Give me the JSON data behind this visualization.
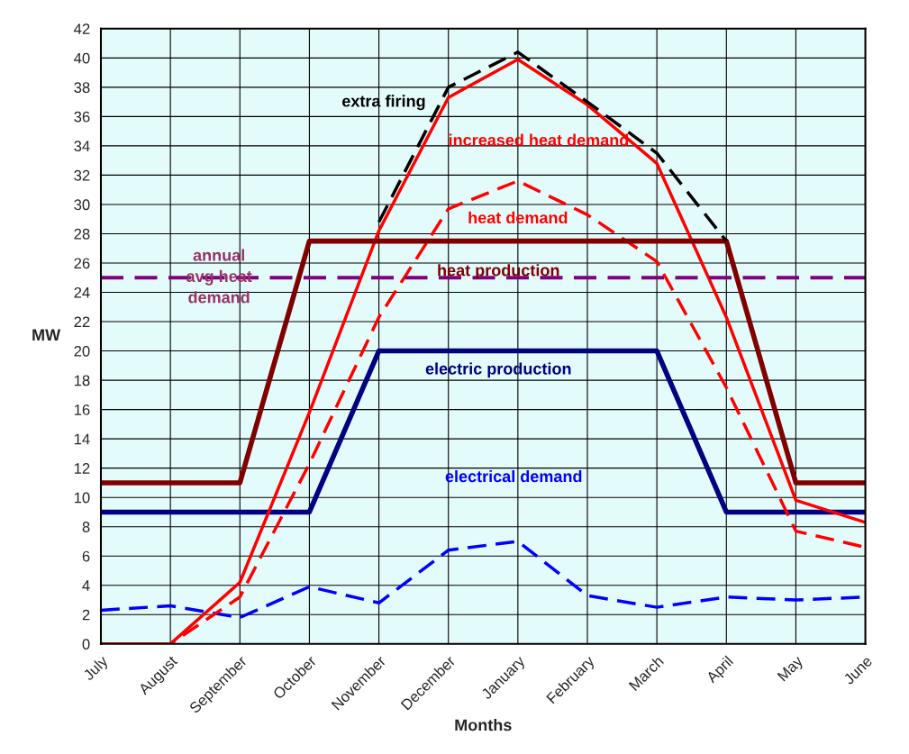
{
  "chart_data": {
    "type": "line",
    "xlabel": "Months",
    "ylabel": "MW",
    "categories": [
      "July",
      "August",
      "September",
      "October",
      "November",
      "December",
      "January",
      "February",
      "March",
      "April",
      "May",
      "June"
    ],
    "series": [
      {
        "name": "electrical demand",
        "color": "#0000ff",
        "line_style": "dashed",
        "values": [
          2.3,
          2.6,
          1.8,
          3.9,
          2.8,
          6.4,
          7.0,
          3.3,
          2.5,
          3.2,
          3.0,
          3.2
        ]
      },
      {
        "name": "electric production",
        "color": "#000080",
        "line_style": "solid",
        "values": [
          9,
          9,
          9,
          9,
          20,
          20,
          20,
          20,
          20,
          9,
          9,
          9
        ]
      },
      {
        "name": "heat demand",
        "color": "#ff0000",
        "line_style": "dashed",
        "values": [
          0,
          0,
          3.2,
          12.3,
          22.3,
          29.7,
          31.6,
          29.3,
          26.1,
          17.5,
          7.7,
          6.6
        ]
      },
      {
        "name": "increased heat demand",
        "color": "#ff0000",
        "line_style": "solid",
        "values": [
          0,
          0,
          4.2,
          15.8,
          28.2,
          37.3,
          39.9,
          36.8,
          32.8,
          22.3,
          9.8,
          8.3
        ]
      },
      {
        "name": "heat production",
        "color": "#800000",
        "line_style": "solid",
        "values": [
          11,
          11,
          11,
          27.5,
          27.5,
          27.5,
          27.5,
          27.5,
          27.5,
          27.5,
          11,
          11
        ]
      },
      {
        "name": "extra firing",
        "color": "#000000",
        "line_style": "dashed",
        "values": [
          null,
          null,
          null,
          null,
          28.8,
          38.0,
          40.4,
          37.0,
          33.5,
          27.5,
          null,
          null
        ]
      }
    ],
    "ref_lines": [
      {
        "axis": "y",
        "value": 25,
        "label": "annual\navg heat\ndemand",
        "color": "#800080",
        "line_style": "dashed"
      }
    ],
    "ylim": [
      0,
      42
    ],
    "yticks": [
      0,
      2,
      4,
      6,
      8,
      10,
      12,
      14,
      16,
      18,
      20,
      22,
      24,
      26,
      28,
      30,
      32,
      34,
      36,
      38,
      40,
      42
    ],
    "grid": true,
    "marker": "none",
    "legend": false
  }
}
